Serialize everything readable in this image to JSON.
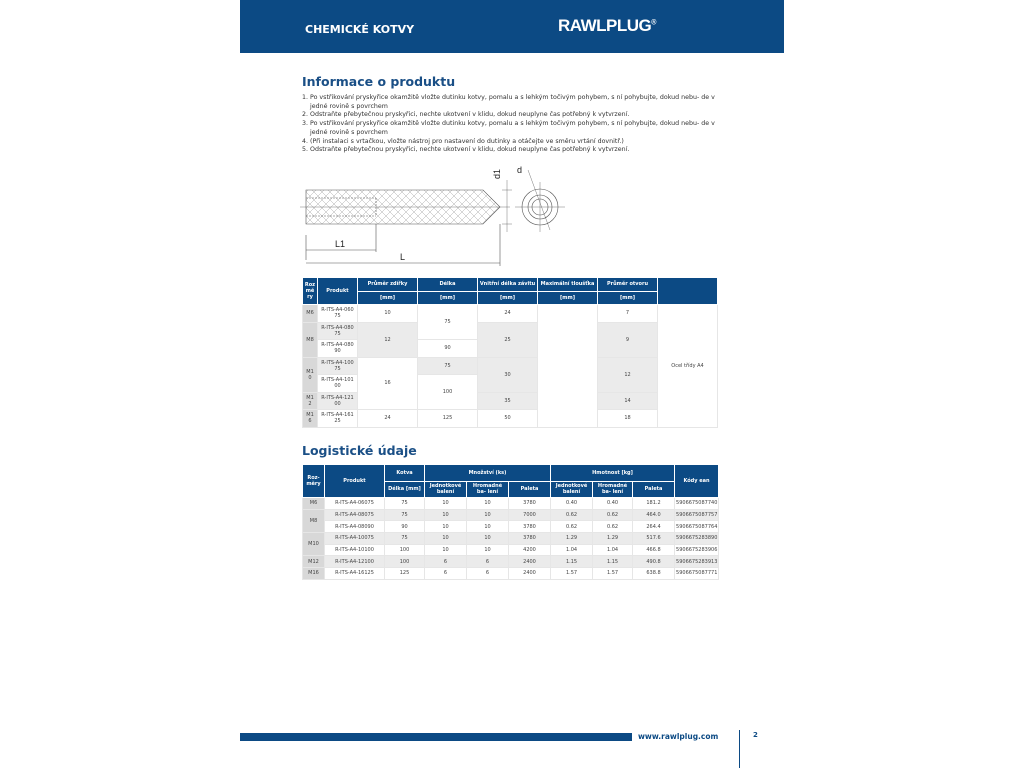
{
  "header": {
    "section": "CHEMICKÉ KOTVY",
    "logo": "RAWLPLUG",
    "brand_color": "#0c4a84"
  },
  "info": {
    "title": "Informace o produktu",
    "steps": [
      "1. Po vstřikování pryskyřice okamžitě vložte dutinku kotvy, pomalu a s lehkým točivým pohybem, s ní pohybujte, dokud nebu- de v jedné rovině s povrchem",
      "2. Odstraňte přebytečnou pryskyřici, nechte ukotvení v klidu, dokud neuplyne čas potřebný k vytvrzení.",
      "3. Po vstřikování pryskyřice okamžitě vložte dutinku kotvy, pomalu a s lehkým točivým pohybem, s ní pohybujte, dokud nebu- de v jedné rovině s povrchem",
      "4. (Při instalaci s vrtačkou, vložte nástroj pro nastavení do dutinky a otáčejte ve směru vrtání dovnitř.)",
      "5. Odstraňte přebytečnou pryskyřici, nechte ukotvení v klidu, dokud neuplyne čas potřebný k vytvrzení."
    ]
  },
  "drawing": {
    "d1": "d1",
    "d": "d",
    "L1": "L1",
    "L": "L"
  },
  "t1": {
    "h": [
      "Roz mě ry",
      "Produkt",
      "Průměr zdířky",
      "Délka",
      "Vnitřní délka závitu",
      "Maximální tloušťka",
      "Průměr otvoru"
    ],
    "unit": "[mm]",
    "sizes": [
      "M6",
      "M8",
      "M1 0",
      "M1 2",
      "M1 6"
    ],
    "products": [
      "R-ITS-A4-060 75",
      "R-ITS-A4-080 75",
      "R-ITS-A4-080 90",
      "R-ITS-A4-100 75",
      "R-ITS-A4-101 00",
      "R-ITS-A4-121 00",
      "R-ITS-A4-161 25"
    ],
    "socket": [
      "10",
      "12",
      "16",
      "24"
    ],
    "length": [
      "75",
      "90",
      "75",
      "100",
      "125"
    ],
    "thread": [
      "24",
      "25",
      "30",
      "35",
      "50"
    ],
    "hole": [
      "7",
      "9",
      "12",
      "14",
      "18"
    ],
    "material": "Ocel třídy A4"
  },
  "logistics": {
    "title": "Logistické údaje",
    "h": {
      "size": "Roz- měry",
      "product": "Produkt",
      "anchor": "Kotva",
      "qty": "Množství (ks)",
      "weight": "Hmotnost [kg]",
      "ean": "Kódy ean",
      "len": "Délka [mm]",
      "unit": "Jednotkové balení",
      "bulk": "Hromadné ba- lení",
      "pallet": "Paleta"
    },
    "sizes": [
      "M6",
      "M8",
      "M10",
      "M12",
      "M16"
    ],
    "rows": [
      [
        "R-ITS-A4-06075",
        "75",
        "10",
        "10",
        "3780",
        "0.40",
        "0.40",
        "181.2",
        "5906675087740"
      ],
      [
        "R-ITS-A4-08075",
        "75",
        "10",
        "10",
        "7000",
        "0.62",
        "0.62",
        "464.0",
        "5906675087757"
      ],
      [
        "R-ITS-A4-08090",
        "90",
        "10",
        "10",
        "3780",
        "0.62",
        "0.62",
        "264.4",
        "5906675087764"
      ],
      [
        "R-ITS-A4-10075",
        "75",
        "10",
        "10",
        "3780",
        "1.29",
        "1.29",
        "517.6",
        "5906675283890"
      ],
      [
        "R-ITS-A4-10100",
        "100",
        "10",
        "10",
        "4200",
        "1.04",
        "1.04",
        "466.8",
        "5906675283906"
      ],
      [
        "R-ITS-A4-12100",
        "100",
        "6",
        "6",
        "2400",
        "1.15",
        "1.15",
        "490.8",
        "5906675283913"
      ],
      [
        "R-ITS-A4-16125",
        "125",
        "6",
        "6",
        "2400",
        "1.57",
        "1.57",
        "638.8",
        "5906675087771"
      ]
    ]
  },
  "footer": {
    "url": "www.rawlplug.com",
    "page": "2"
  }
}
